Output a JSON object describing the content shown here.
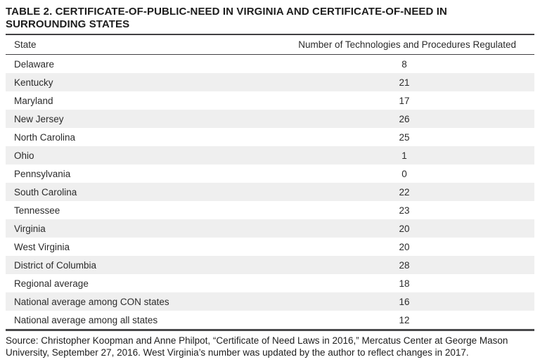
{
  "title": {
    "line1": "TABLE 2. CERTIFICATE-OF-PUBLIC-NEED IN VIRGINIA AND CERTIFICATE-OF-NEED IN",
    "line2": "SURROUNDING STATES"
  },
  "table": {
    "columns": {
      "state": "State",
      "value": "Number of Technologies and Procedures Regulated"
    },
    "rows": [
      {
        "state": "Delaware",
        "value": "8"
      },
      {
        "state": "Kentucky",
        "value": "21"
      },
      {
        "state": "Maryland",
        "value": "17"
      },
      {
        "state": "New Jersey",
        "value": "26"
      },
      {
        "state": "North Carolina",
        "value": "25"
      },
      {
        "state": "Ohio",
        "value": "1"
      },
      {
        "state": "Pennsylvania",
        "value": "0"
      },
      {
        "state": "South Carolina",
        "value": "22"
      },
      {
        "state": "Tennessee",
        "value": "23"
      },
      {
        "state": "Virginia",
        "value": "20"
      },
      {
        "state": "West Virginia",
        "value": "20"
      },
      {
        "state": "District of Columbia",
        "value": "28"
      },
      {
        "state": "Regional average",
        "value": "18"
      },
      {
        "state": "National average among CON states",
        "value": "16"
      },
      {
        "state": "National average among all states",
        "value": "12"
      }
    ]
  },
  "source": "Source: Christopher Koopman and Anne Philpot, “Certificate of Need Laws in 2016,” Mercatus Center at George Mason University, September 27, 2016. West Virginia’s number was updated by the author to reflect changes in 2017."
}
